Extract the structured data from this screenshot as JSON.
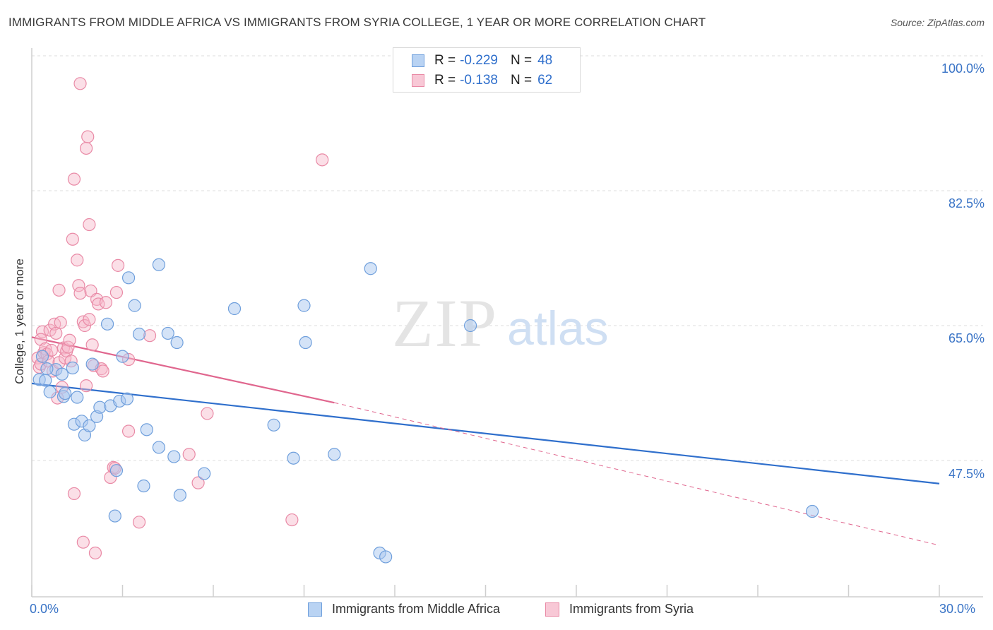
{
  "header": {
    "title": "IMMIGRANTS FROM MIDDLE AFRICA VS IMMIGRANTS FROM SYRIA COLLEGE, 1 YEAR OR MORE CORRELATION CHART",
    "source": "Source: ZipAtlas.com"
  },
  "watermark": {
    "zip": "ZIP",
    "atlas": "atlas"
  },
  "legend": {
    "row1": {
      "r_label": "R =",
      "r_value": "-0.229",
      "n_label": "N =",
      "n_value": "48"
    },
    "row2": {
      "r_label": "R =",
      "r_value": "-0.138",
      "n_label": "N =",
      "n_value": "62"
    }
  },
  "axis": {
    "ylabel": "College, 1 year or more",
    "x_min_label": "0.0%",
    "x_max_label": "30.0%",
    "y_ticks": [
      "100.0%",
      "82.5%",
      "65.0%",
      "47.5%"
    ]
  },
  "colors": {
    "blue_fill": "#a9c8f0",
    "blue_stroke": "#6f9fdc",
    "blue_line": "#2f6fcc",
    "pink_fill": "#f6b8c9",
    "pink_stroke": "#e98aa6",
    "pink_line": "#e0668e"
  },
  "chart_data": {
    "type": "scatter",
    "title": "IMMIGRANTS FROM MIDDLE AFRICA VS IMMIGRANTS FROM SYRIA COLLEGE, 1 YEAR OR MORE CORRELATION CHART",
    "xlabel": "",
    "ylabel": "College, 1 year or more",
    "xlim": [
      0,
      30
    ],
    "ylim": [
      30,
      100
    ],
    "y_ticks": [
      47.5,
      65.0,
      82.5,
      100.0
    ],
    "grid": true,
    "legend_position": "top-center",
    "series": [
      {
        "name": "Immigrants from Middle Africa",
        "R": -0.229,
        "N": 48,
        "trend": {
          "x": [
            0.0,
            30.0
          ],
          "y": [
            57.5,
            44.5
          ],
          "dashed_extension": false
        },
        "points": [
          [
            0.25,
            58.0
          ],
          [
            0.45,
            57.9
          ],
          [
            0.6,
            56.4
          ],
          [
            0.8,
            59.3
          ],
          [
            1.0,
            58.7
          ],
          [
            0.5,
            59.4
          ],
          [
            1.05,
            55.8
          ],
          [
            1.1,
            56.2
          ],
          [
            1.5,
            55.7
          ],
          [
            1.35,
            59.5
          ],
          [
            1.4,
            52.2
          ],
          [
            1.65,
            52.6
          ],
          [
            1.75,
            50.8
          ],
          [
            1.9,
            52.0
          ],
          [
            2.0,
            60.0
          ],
          [
            2.15,
            53.2
          ],
          [
            2.25,
            54.4
          ],
          [
            2.5,
            65.2
          ],
          [
            2.6,
            54.6
          ],
          [
            2.75,
            40.3
          ],
          [
            2.8,
            46.2
          ],
          [
            2.9,
            55.2
          ],
          [
            3.0,
            61.0
          ],
          [
            3.15,
            55.5
          ],
          [
            3.2,
            71.2
          ],
          [
            3.4,
            67.6
          ],
          [
            3.55,
            63.9
          ],
          [
            3.7,
            44.2
          ],
          [
            3.8,
            51.5
          ],
          [
            4.2,
            49.2
          ],
          [
            4.2,
            72.9
          ],
          [
            4.5,
            64.0
          ],
          [
            4.7,
            48.0
          ],
          [
            4.8,
            62.8
          ],
          [
            4.9,
            43.0
          ],
          [
            5.7,
            45.8
          ],
          [
            6.7,
            67.2
          ],
          [
            8.0,
            52.1
          ],
          [
            8.65,
            47.8
          ],
          [
            9.0,
            67.6
          ],
          [
            9.05,
            62.8
          ],
          [
            10.0,
            48.3
          ],
          [
            11.2,
            72.4
          ],
          [
            11.5,
            35.5
          ],
          [
            11.7,
            35.0
          ],
          [
            14.5,
            65.0
          ],
          [
            25.8,
            40.9
          ],
          [
            0.35,
            61.0
          ]
        ]
      },
      {
        "name": "Immigrants from Syria",
        "R": -0.138,
        "N": 62,
        "trend": {
          "x": [
            0.0,
            10.0,
            30.0
          ],
          "y": [
            63.5,
            55.0,
            36.5
          ],
          "solid_until_x": 10.0,
          "dashed_extension": true
        },
        "points": [
          [
            0.2,
            60.8
          ],
          [
            0.25,
            59.6
          ],
          [
            0.3,
            60.0
          ],
          [
            0.35,
            64.2
          ],
          [
            0.3,
            63.2
          ],
          [
            0.4,
            61.5
          ],
          [
            0.45,
            62.0
          ],
          [
            0.5,
            61.3
          ],
          [
            0.55,
            60.4
          ],
          [
            0.6,
            64.4
          ],
          [
            0.65,
            61.8
          ],
          [
            0.7,
            59.1
          ],
          [
            0.75,
            65.2
          ],
          [
            0.8,
            64.0
          ],
          [
            0.85,
            55.6
          ],
          [
            0.9,
            60.2
          ],
          [
            0.9,
            69.6
          ],
          [
            0.95,
            65.4
          ],
          [
            1.0,
            57.0
          ],
          [
            1.05,
            62.1
          ],
          [
            1.1,
            60.8
          ],
          [
            1.15,
            61.7
          ],
          [
            1.2,
            62.2
          ],
          [
            1.25,
            63.1
          ],
          [
            1.3,
            60.4
          ],
          [
            1.35,
            76.2
          ],
          [
            1.4,
            43.2
          ],
          [
            1.4,
            84.0
          ],
          [
            1.5,
            73.5
          ],
          [
            1.55,
            70.2
          ],
          [
            1.6,
            69.2
          ],
          [
            1.7,
            65.5
          ],
          [
            1.75,
            65.0
          ],
          [
            1.8,
            57.2
          ],
          [
            1.6,
            96.4
          ],
          [
            1.7,
            36.9
          ],
          [
            1.8,
            88.0
          ],
          [
            1.85,
            89.5
          ],
          [
            1.9,
            78.1
          ],
          [
            1.9,
            65.8
          ],
          [
            1.95,
            69.5
          ],
          [
            2.0,
            62.5
          ],
          [
            2.05,
            59.8
          ],
          [
            2.1,
            35.5
          ],
          [
            2.15,
            68.4
          ],
          [
            2.2,
            67.8
          ],
          [
            2.3,
            59.4
          ],
          [
            2.35,
            59.1
          ],
          [
            2.45,
            68.0
          ],
          [
            2.6,
            45.3
          ],
          [
            2.7,
            46.6
          ],
          [
            2.75,
            46.5
          ],
          [
            2.8,
            69.3
          ],
          [
            2.85,
            72.8
          ],
          [
            3.2,
            60.6
          ],
          [
            3.2,
            51.3
          ],
          [
            3.55,
            39.5
          ],
          [
            3.9,
            63.7
          ],
          [
            5.2,
            48.3
          ],
          [
            5.5,
            44.6
          ],
          [
            5.8,
            53.6
          ],
          [
            8.6,
            39.8
          ]
        ]
      }
    ],
    "extra_points_syria": [
      [
        9.6,
        86.5
      ]
    ]
  }
}
